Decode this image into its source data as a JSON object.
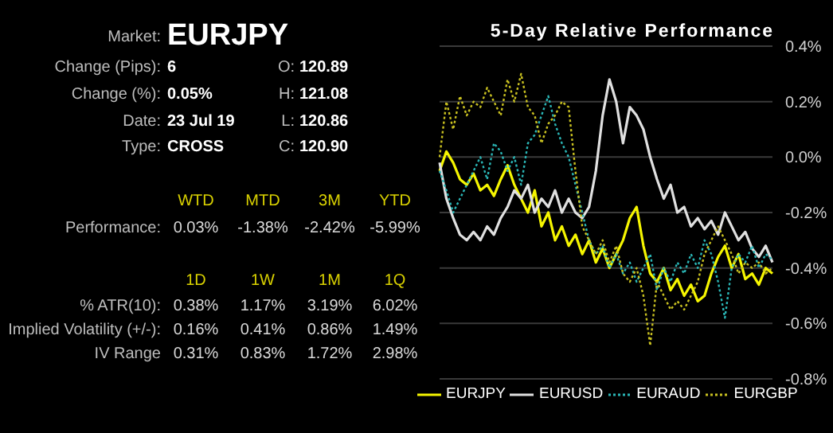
{
  "chart_data": [
    {
      "type": "other",
      "annotations": [
        "Market:",
        "EURJPY",
        "Change (Pips):",
        "6",
        "O:",
        "120.89",
        "Change (%):",
        "0.05%",
        "H:",
        "121.08",
        "Date:",
        "23 Jul 19",
        "L:",
        "120.86",
        "Type:",
        "CROSS",
        "C:",
        "120.90",
        "WTD",
        "MTD",
        "3M",
        "YTD",
        "Performance:",
        "0.03%",
        "-1.38%",
        "-2.42%",
        "-5.99%",
        "1D",
        "1W",
        "1M",
        "1Q",
        "% ATR(10):",
        "0.38%",
        "1.17%",
        "3.19%",
        "6.02%",
        "Implied Volatility (+/-):",
        "0.16%",
        "0.41%",
        "0.86%",
        "1.49%",
        "IV Range",
        "0.31%",
        "0.83%",
        "1.72%",
        "2.98%"
      ]
    },
    {
      "type": "line",
      "title": "5-Day Relative Performance",
      "categories": [
        null,
        null,
        null,
        null,
        null,
        null,
        null,
        null,
        null,
        null,
        null,
        null,
        null,
        null,
        null,
        null,
        null,
        null,
        null,
        null,
        null,
        null,
        null,
        null,
        null,
        null,
        null,
        null,
        null,
        null,
        null,
        null,
        null,
        null,
        null,
        null,
        null,
        null,
        null,
        null,
        null,
        null,
        null,
        null,
        null,
        null,
        null,
        null,
        null,
        null
      ],
      "series": [
        {
          "name": "EURJPY",
          "color": "#f5f500",
          "line_style": "solid",
          "values": [
            -0.05,
            0.02,
            -0.02,
            -0.08,
            -0.1,
            -0.06,
            -0.12,
            -0.1,
            -0.14,
            -0.08,
            -0.03,
            -0.1,
            -0.15,
            -0.2,
            -0.12,
            -0.25,
            -0.2,
            -0.3,
            -0.25,
            -0.32,
            -0.28,
            -0.35,
            -0.3,
            -0.38,
            -0.33,
            -0.4,
            -0.35,
            -0.3,
            -0.22,
            -0.18,
            -0.32,
            -0.42,
            -0.45,
            -0.4,
            -0.48,
            -0.44,
            -0.5,
            -0.46,
            -0.52,
            -0.5,
            -0.42,
            -0.36,
            -0.32,
            -0.4,
            -0.35,
            -0.44,
            -0.42,
            -0.46,
            -0.4,
            -0.42
          ]
        },
        {
          "name": "EURUSD",
          "color": "#e0e0e0",
          "line_style": "solid",
          "values": [
            -0.02,
            -0.15,
            -0.22,
            -0.28,
            -0.3,
            -0.27,
            -0.3,
            -0.25,
            -0.28,
            -0.22,
            -0.18,
            -0.12,
            -0.15,
            -0.1,
            -0.2,
            -0.15,
            -0.18,
            -0.12,
            -0.2,
            -0.15,
            -0.2,
            -0.22,
            -0.18,
            -0.05,
            0.15,
            0.28,
            0.2,
            0.05,
            0.18,
            0.15,
            0.1,
            0.0,
            -0.08,
            -0.15,
            -0.1,
            -0.2,
            -0.18,
            -0.25,
            -0.22,
            -0.26,
            -0.23,
            -0.28,
            -0.2,
            -0.25,
            -0.3,
            -0.27,
            -0.33,
            -0.36,
            -0.32,
            -0.38
          ]
        },
        {
          "name": "EURAUD",
          "color": "#2ab5b5",
          "line_style": "dotted",
          "values": [
            -0.05,
            -0.12,
            -0.2,
            -0.15,
            -0.1,
            -0.05,
            0.0,
            -0.08,
            0.05,
            0.02,
            -0.05,
            0.0,
            -0.1,
            0.05,
            0.08,
            0.15,
            0.22,
            0.12,
            0.05,
            0.0,
            -0.1,
            -0.2,
            -0.3,
            -0.35,
            -0.32,
            -0.4,
            -0.35,
            -0.42,
            -0.38,
            -0.45,
            -0.4,
            -0.35,
            -0.48,
            -0.4,
            -0.45,
            -0.38,
            -0.42,
            -0.35,
            -0.4,
            -0.3,
            -0.35,
            -0.45,
            -0.58,
            -0.4,
            -0.35,
            -0.38,
            -0.32,
            -0.4,
            -0.35,
            -0.37
          ]
        },
        {
          "name": "EURGBP",
          "color": "#c8c020",
          "line_style": "dotted",
          "values": [
            0.0,
            0.2,
            0.1,
            0.22,
            0.15,
            0.2,
            0.18,
            0.25,
            0.2,
            0.15,
            0.28,
            0.2,
            0.3,
            0.18,
            0.15,
            0.05,
            0.12,
            0.15,
            0.2,
            0.18,
            -0.05,
            -0.25,
            -0.3,
            -0.35,
            -0.3,
            -0.38,
            -0.32,
            -0.42,
            -0.45,
            -0.4,
            -0.5,
            -0.68,
            -0.45,
            -0.5,
            -0.55,
            -0.52,
            -0.55,
            -0.5,
            -0.45,
            -0.35,
            -0.3,
            -0.25,
            -0.3,
            -0.35,
            -0.42,
            -0.38,
            -0.4,
            -0.38,
            -0.42,
            -0.4
          ]
        }
      ],
      "ylim": [
        -0.8,
        0.4
      ],
      "yticks": [
        {
          "value": -0.8,
          "label": "-0.8%"
        },
        {
          "value": -0.6,
          "label": "-0.6%"
        },
        {
          "value": -0.4,
          "label": "-0.4%"
        },
        {
          "value": -0.2,
          "label": "-0.2%"
        },
        {
          "value": 0,
          "label": "0.0%"
        },
        {
          "value": 0.2,
          "label": "0.2%"
        },
        {
          "value": 0.4,
          "label": "0.4%"
        }
      ],
      "tick_labels": "y",
      "grid": "y",
      "legend": "bottom",
      "marker": "none"
    }
  ]
}
